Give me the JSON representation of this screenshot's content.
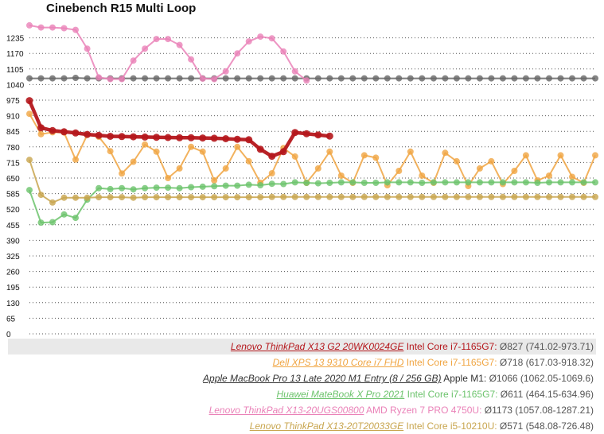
{
  "chart_data": {
    "type": "line",
    "title": "Cinebench R15 Multi Loop",
    "xlabel": "",
    "ylabel": "",
    "ylim": [
      0,
      1300
    ],
    "yticks": [
      0,
      65,
      130,
      195,
      260,
      325,
      390,
      455,
      520,
      585,
      650,
      715,
      780,
      845,
      910,
      975,
      1040,
      1105,
      1170,
      1235
    ],
    "xlim": [
      1,
      50
    ],
    "grid": "dotted-horizontal",
    "legend": "bottom-right",
    "series": [
      {
        "name": "Lenovo ThinkPad X13 G2 20WK0024GE",
        "cpu": "Intel Core i7-1165G7",
        "stats": "Ø827 (741.02-973.71)",
        "color": "#b5171c",
        "thick": true,
        "highlight": true,
        "values": [
          973,
          860,
          848,
          843,
          838,
          832,
          828,
          824,
          823,
          822,
          821,
          820,
          819,
          818,
          818,
          817,
          816,
          814,
          812,
          810,
          770,
          741,
          760,
          840,
          835,
          830,
          825
        ]
      },
      {
        "name": "Dell XPS 13 9310 Core i7 FHD",
        "cpu": "Intel Core i7-1165G7",
        "stats": "Ø718 (617.03-918.32)",
        "color": "#f0a542",
        "values": [
          918,
          833,
          841,
          840,
          727,
          830,
          822,
          762,
          669,
          718,
          790,
          760,
          650,
          690,
          780,
          760,
          640,
          690,
          780,
          720,
          630,
          670,
          775,
          740,
          630,
          690,
          760,
          660,
          630,
          745,
          735,
          620,
          680,
          760,
          660,
          630,
          755,
          720,
          617,
          690,
          720,
          625,
          680,
          745,
          640,
          660,
          745,
          655,
          630,
          745
        ]
      },
      {
        "name": "Apple MacBook Pro 13 Late 2020 M1 Entry (8 / 256 GB)",
        "cpu": "Apple M1",
        "stats": "Ø1066 (1062.05-1069.6)",
        "color": "#666666",
        "values": [
          1066,
          1066,
          1066,
          1066,
          1068,
          1066,
          1066,
          1066,
          1066,
          1066,
          1066,
          1066,
          1066,
          1066,
          1066,
          1066,
          1066,
          1066,
          1066,
          1066,
          1066,
          1066,
          1066,
          1066,
          1066,
          1066,
          1066,
          1066,
          1066,
          1066,
          1066,
          1066,
          1066,
          1066,
          1066,
          1066,
          1066,
          1066,
          1066,
          1066,
          1066,
          1066,
          1066,
          1066,
          1066,
          1066,
          1066,
          1066,
          1066,
          1066
        ]
      },
      {
        "name": "Huawei MateBook X Pro 2021",
        "cpu": "Intel Core i7-1165G7",
        "stats": "Ø611 (464.15-634.96)",
        "color": "#6cc36c",
        "values": [
          600,
          464,
          466,
          498,
          484,
          560,
          608,
          604,
          608,
          603,
          608,
          610,
          610,
          608,
          612,
          614,
          616,
          618,
          618,
          622,
          620,
          626,
          625,
          632,
          630,
          628,
          630,
          632,
          632,
          630,
          630,
          632,
          632,
          632,
          630,
          632,
          632,
          632,
          632,
          632,
          632,
          632,
          632,
          632,
          630,
          632,
          632,
          632,
          632,
          632
        ]
      },
      {
        "name": "Lenovo ThinkPad X13-20UGS00800",
        "cpu": "AMD Ryzen 7 PRO 4750U",
        "stats": "Ø1173 (1057.08-1287.21)",
        "color": "#ea82b8",
        "values": [
          1287,
          1278,
          1278,
          1275,
          1268,
          1190,
          1070,
          1063,
          1063,
          1140,
          1190,
          1230,
          1230,
          1205,
          1145,
          1065,
          1063,
          1095,
          1170,
          1220,
          1240,
          1233,
          1178,
          1095,
          1057
        ]
      },
      {
        "name": "Lenovo ThinkPad X13-20T20033GE",
        "cpu": "Intel Core i5-10210U",
        "stats": "Ø571 (548.08-726.48)",
        "color": "#c8a54e",
        "values": [
          726,
          580,
          548,
          568,
          568,
          568,
          570,
          570,
          570,
          568,
          570,
          570,
          570,
          570,
          570,
          570,
          570,
          570,
          570,
          570,
          570,
          571,
          571,
          571,
          571,
          571,
          571,
          571,
          571,
          571,
          571,
          571,
          571,
          571,
          571,
          571,
          571,
          571,
          571,
          571,
          571,
          571,
          571,
          571,
          571,
          571,
          571,
          571,
          571,
          571
        ]
      }
    ]
  },
  "colors": {
    "gridline": "#555555",
    "axis_label": "#111111",
    "legend_highlight_bg": "#e9e9e9",
    "stats_text": "#555555"
  }
}
